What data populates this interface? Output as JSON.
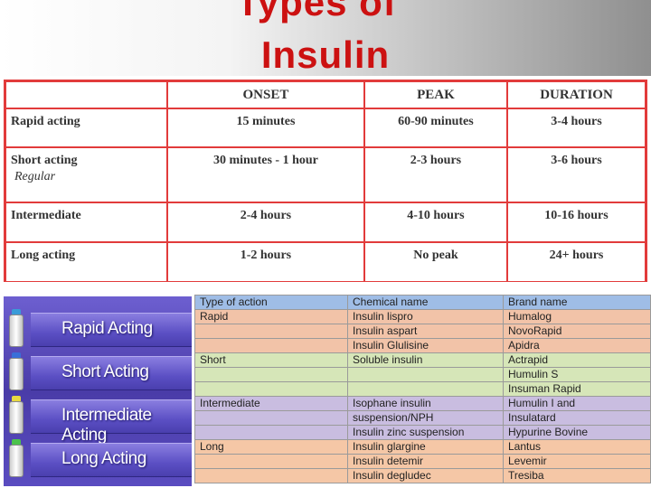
{
  "title": {
    "line1": "Types of",
    "line2": "Insulin"
  },
  "onset_table": {
    "headers": [
      "",
      "ONSET",
      "PEAK",
      "DURATION"
    ],
    "rows": [
      {
        "label": "Rapid acting",
        "sub": "",
        "onset": "15 minutes",
        "peak": "60-90 minutes",
        "duration": "3-4 hours"
      },
      {
        "label": "Short acting",
        "sub": "Regular",
        "onset": "30 minutes - 1 hour",
        "peak": "2-3 hours",
        "duration": "3-6 hours"
      },
      {
        "label": "Intermediate",
        "sub": "",
        "onset": "2-4 hours",
        "peak": "4-10 hours",
        "duration": "10-16 hours"
      },
      {
        "label": "Long acting",
        "sub": "",
        "onset": "1-2 hours",
        "peak": "No peak",
        "duration": "24+ hours"
      }
    ]
  },
  "vial_image": {
    "labels": [
      "Rapid Acting",
      "Short Acting",
      "Intermediate Acting",
      "Long Acting"
    ],
    "cap_colors": [
      "#3a9bd8",
      "#3a6fd8",
      "#e8d840",
      "#4cc24c"
    ]
  },
  "brand_table": {
    "headers": [
      "Type of action",
      "Chemical name",
      "Brand name"
    ],
    "rows": [
      {
        "group": "rapid",
        "type": "Rapid",
        "chem": "Insulin lispro",
        "brand": "Humalog"
      },
      {
        "group": "rapid",
        "type": "",
        "chem": "Insulin aspart",
        "brand": "NovoRapid"
      },
      {
        "group": "rapid",
        "type": "",
        "chem": "Insulin Glulisine",
        "brand": "Apidra"
      },
      {
        "group": "short",
        "type": "Short",
        "chem": "Soluble insulin",
        "brand": "Actrapid"
      },
      {
        "group": "short",
        "type": "",
        "chem": "",
        "brand": "Humulin S"
      },
      {
        "group": "short",
        "type": "",
        "chem": "",
        "brand": "Insuman Rapid"
      },
      {
        "group": "inter",
        "type": "Intermediate",
        "chem": "Isophane insulin",
        "brand": "Humulin I and"
      },
      {
        "group": "inter",
        "type": "",
        "chem": "suspension/NPH",
        "brand": "Insulatard"
      },
      {
        "group": "inter",
        "type": "",
        "chem": "Insulin zinc suspension",
        "brand": "Hypurine Bovine"
      },
      {
        "group": "long",
        "type": "Long",
        "chem": "Insulin glargine",
        "brand": "Lantus"
      },
      {
        "group": "long",
        "type": "",
        "chem": "Insulin detemir",
        "brand": "Levemir"
      },
      {
        "group": "long",
        "type": "",
        "chem": "Insulin degludec",
        "brand": "Tresiba"
      }
    ]
  }
}
